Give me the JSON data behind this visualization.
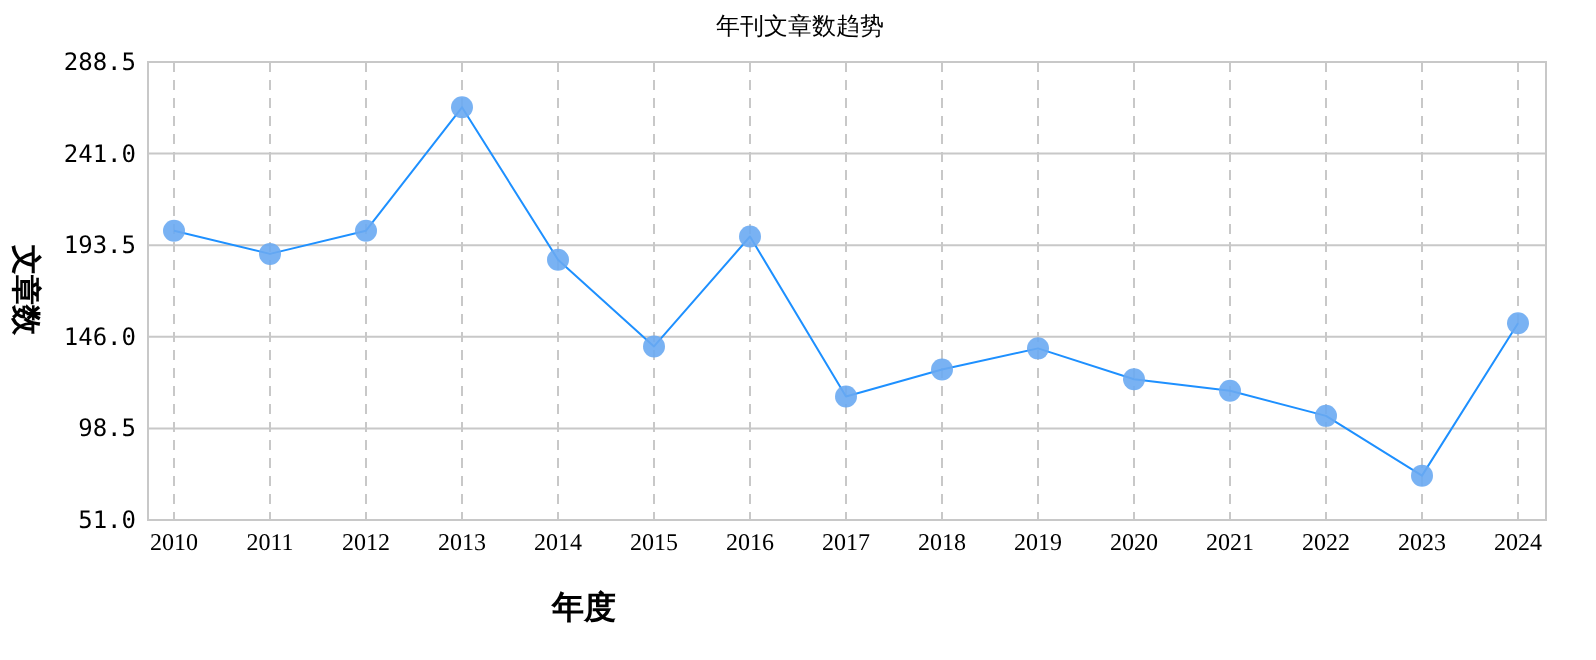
{
  "chart_data": {
    "type": "line",
    "title": "年刊文章数趋势",
    "xlabel": "年度",
    "ylabel": "文章数",
    "categories": [
      "2010",
      "2011",
      "2012",
      "2013",
      "2014",
      "2015",
      "2016",
      "2017",
      "2018",
      "2019",
      "2020",
      "2021",
      "2022",
      "2023",
      "2024"
    ],
    "series": [
      {
        "color": "#1e90ff",
        "values": [
          201,
          189,
          201,
          265,
          186,
          141,
          198,
          115,
          129,
          140,
          124,
          118,
          105,
          74,
          153
        ]
      }
    ],
    "ylim": [
      51,
      288.5
    ],
    "yticks": [
      {
        "value": 51,
        "label": "51.0"
      },
      {
        "value": 98.5,
        "label": "98.5"
      },
      {
        "value": 146,
        "label": "146.0"
      },
      {
        "value": 193.5,
        "label": "193.5"
      },
      {
        "value": 241,
        "label": "241.0"
      },
      {
        "value": 288.5,
        "label": "288.5"
      }
    ],
    "grid": true,
    "marker": "circle",
    "line_style": "solid"
  }
}
